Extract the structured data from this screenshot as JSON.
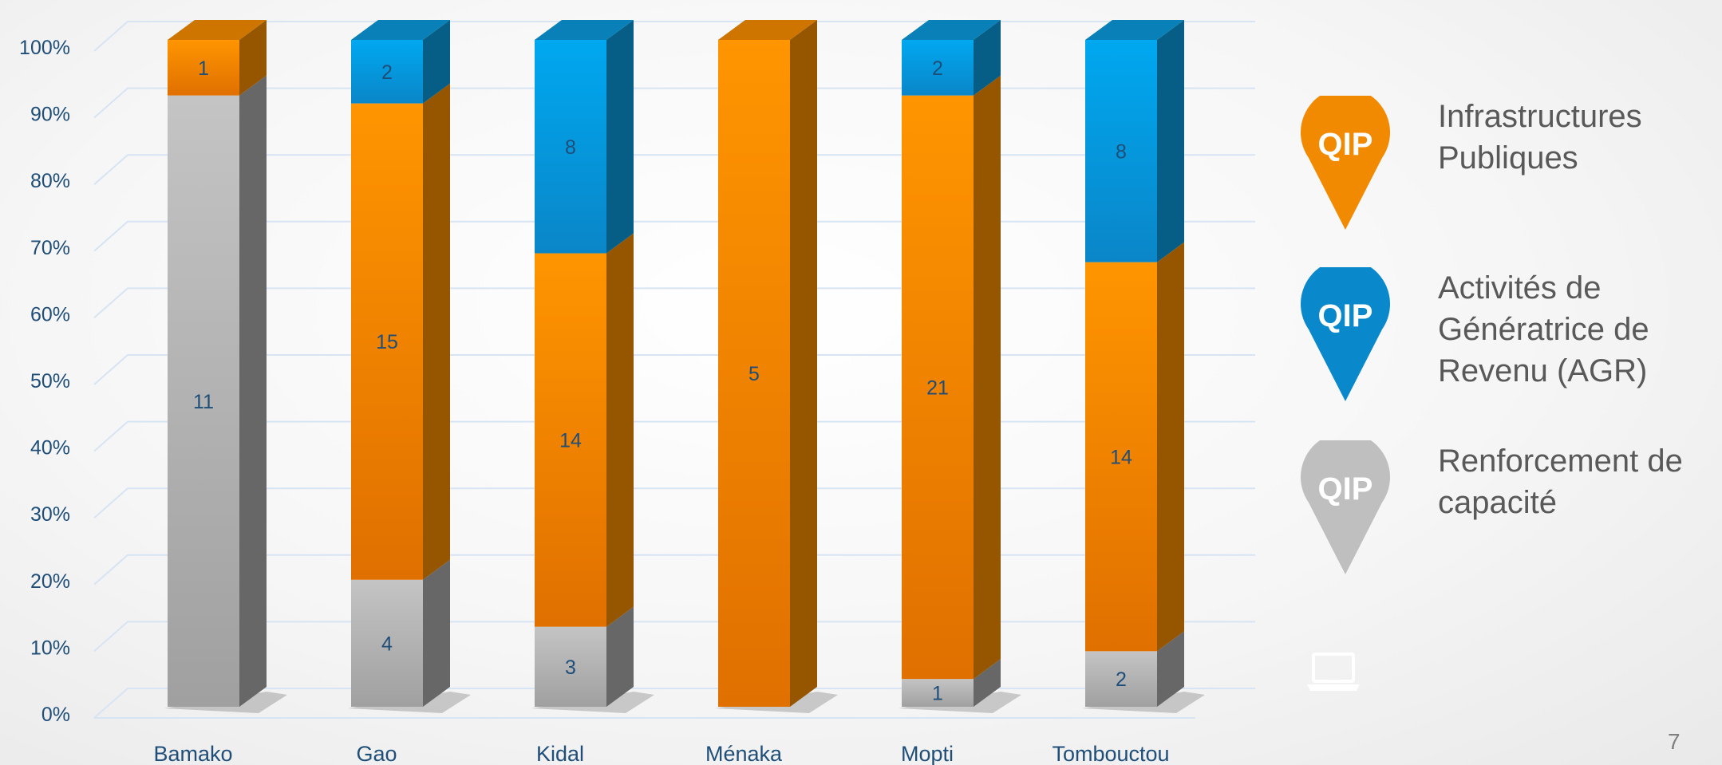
{
  "chart_data": {
    "type": "bar",
    "stacked": "percent",
    "categories": [
      "Bamako",
      "Gao",
      "Kidal",
      "Ménaka",
      "Mopti",
      "Tombouctou"
    ],
    "series": [
      {
        "name": "Renforcement de capacité",
        "color": "#a6a6a6",
        "values": [
          11,
          4,
          3,
          0,
          1,
          2
        ]
      },
      {
        "name": "Infrastructures Publiques",
        "color": "#f28a00",
        "values": [
          1,
          15,
          14,
          5,
          21,
          14
        ]
      },
      {
        "name": "Activités de Génératrice de Revenu (AGR)",
        "color": "#0a97d9",
        "values": [
          0,
          2,
          8,
          0,
          2,
          8
        ]
      }
    ],
    "y_ticks": [
      "0%",
      "10%",
      "20%",
      "30%",
      "40%",
      "50%",
      "60%",
      "70%",
      "80%",
      "90%",
      "100%"
    ],
    "ylim": [
      0,
      100
    ],
    "grid": true,
    "legend_position": "right",
    "title": "",
    "xlabel": "",
    "ylabel": ""
  },
  "legend": {
    "pin_text": "QIP",
    "items": [
      {
        "label": "Infrastructures Publiques",
        "color": "#f28a00"
      },
      {
        "label": "Activités de Génératrice de Revenu (AGR)",
        "color": "#0a88cc"
      },
      {
        "label": "Renforcement de capacité",
        "color": "#bfbfbf"
      }
    ]
  },
  "page_number": "7",
  "icons": {
    "footer_icon": "laptop-icon"
  }
}
